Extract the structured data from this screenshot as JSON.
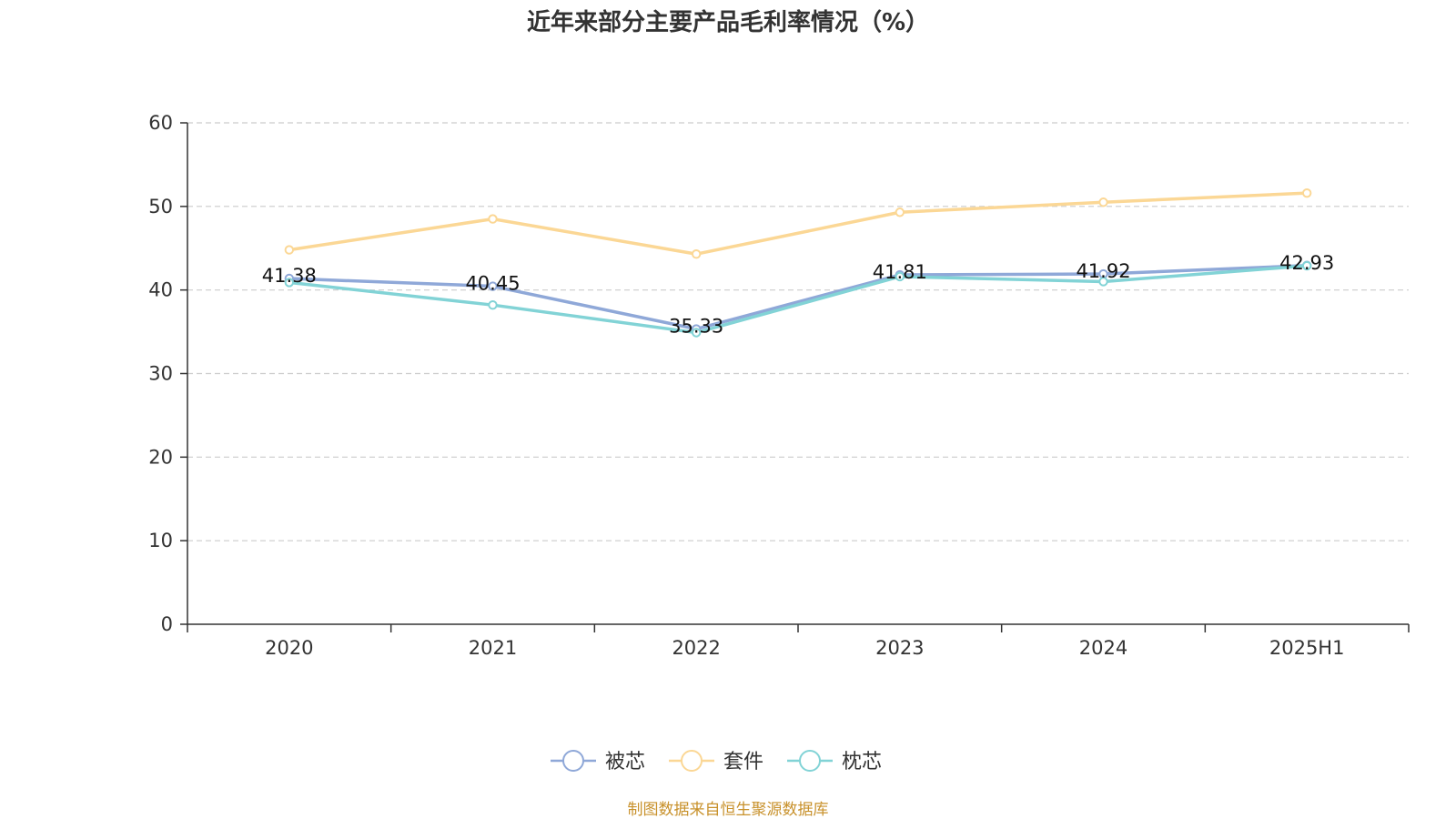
{
  "chart_data": {
    "type": "line",
    "title": "近年来部分主要产品毛利率情况（%）",
    "xlabel": "",
    "ylabel": "",
    "categories": [
      "2020",
      "2021",
      "2022",
      "2023",
      "2024",
      "2025H1"
    ],
    "ylim": [
      0,
      60
    ],
    "yticks": [
      "0",
      "10",
      "20",
      "30",
      "40",
      "50",
      "60"
    ],
    "grid": true,
    "legend_position": "bottom",
    "series": [
      {
        "name": "被芯",
        "color": "#8fa8d8",
        "values": [
          41.38,
          40.45,
          35.33,
          41.81,
          41.92,
          42.93
        ],
        "labels": [
          "41.38",
          "40.45",
          "35.33",
          "41.81",
          "41.92",
          "42.93"
        ]
      },
      {
        "name": "套件",
        "color": "#fbd795",
        "values": [
          44.8,
          48.5,
          44.3,
          49.3,
          50.5,
          51.6
        ]
      },
      {
        "name": "枕芯",
        "color": "#82d3d6",
        "values": [
          40.9,
          38.2,
          34.9,
          41.6,
          41.0,
          42.9
        ]
      }
    ]
  },
  "source_note": "制图数据来自恒生聚源数据库",
  "colors": {
    "axis": "#333333",
    "grid": "#cccccc",
    "source_note": "#c8912b"
  }
}
